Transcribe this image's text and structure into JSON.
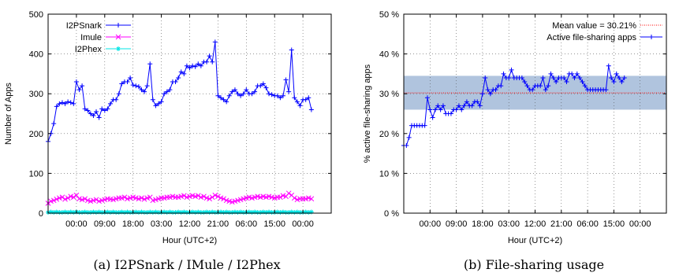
{
  "colors": {
    "blue": "#0000ff",
    "magenta": "#ff00ff",
    "cyan": "#00e5e5",
    "red": "#ff0000",
    "band": "#b0c4de"
  },
  "captions": [
    "(a) I2PSnark / IMule / I2Phex",
    "(b) File-sharing usage"
  ],
  "chart_data": [
    {
      "type": "line",
      "ylabel": "Number of Apps",
      "xlabel": "Hour (UTC+2)",
      "ylim": [
        0,
        500
      ],
      "xlim": [
        0,
        100
      ],
      "yticks": [
        0,
        100,
        200,
        300,
        400,
        500
      ],
      "xtick_labels": [
        "00:00",
        "09:00",
        "18:00",
        "03:00",
        "12:00",
        "21:00",
        "06:00",
        "15:00",
        "00:00"
      ],
      "xtick_positions": [
        10,
        20,
        30,
        40,
        50,
        60,
        70,
        80,
        90
      ],
      "grid": true,
      "legend_position": "top-left",
      "series": [
        {
          "name": "I2PSnark",
          "color": "blue",
          "marker": "plus",
          "x_step": 1,
          "x_start": 0,
          "values": [
            180,
            200,
            225,
            268,
            275,
            278,
            275,
            280,
            278,
            275,
            330,
            310,
            320,
            262,
            258,
            250,
            245,
            255,
            240,
            262,
            258,
            262,
            275,
            285,
            285,
            300,
            325,
            330,
            330,
            340,
            322,
            320,
            318,
            310,
            305,
            320,
            375,
            285,
            270,
            275,
            280,
            300,
            305,
            310,
            330,
            330,
            340,
            355,
            350,
            370,
            365,
            370,
            368,
            375,
            370,
            380,
            380,
            395,
            380,
            430,
            295,
            290,
            285,
            280,
            295,
            305,
            310,
            300,
            295,
            300,
            310,
            300,
            300,
            305,
            320,
            320,
            325,
            315,
            300,
            298,
            295,
            295,
            290,
            295,
            335,
            305,
            410,
            290,
            280,
            270,
            285,
            285,
            290,
            260
          ]
        },
        {
          "name": "Imule",
          "color": "magenta",
          "marker": "x",
          "x_step": 1,
          "x_start": 0,
          "values": [
            25,
            30,
            32,
            35,
            38,
            40,
            35,
            38,
            42,
            40,
            45,
            36,
            34,
            36,
            32,
            30,
            32,
            34,
            30,
            32,
            34,
            36,
            35,
            34,
            36,
            38,
            38,
            40,
            36,
            38,
            40,
            38,
            36,
            38,
            35,
            38,
            40,
            32,
            34,
            36,
            38,
            38,
            40,
            40,
            42,
            40,
            40,
            42,
            44,
            40,
            42,
            44,
            42,
            44,
            40,
            42,
            38,
            36,
            40,
            45,
            42,
            38,
            36,
            32,
            30,
            28,
            30,
            32,
            34,
            36,
            38,
            40,
            38,
            40,
            42,
            40,
            42,
            40,
            42,
            40,
            38,
            40,
            40,
            44,
            42,
            50,
            45,
            38,
            34,
            36,
            36,
            36,
            38,
            36
          ]
        },
        {
          "name": "I2Phex",
          "color": "cyan",
          "marker": "star",
          "x_step": 1,
          "x_start": 0,
          "values": [
            2,
            3,
            2,
            3,
            2,
            2,
            3,
            2,
            3,
            2,
            3,
            2,
            2,
            3,
            2,
            2,
            3,
            2,
            3,
            2,
            2,
            3,
            2,
            3,
            2,
            2,
            3,
            2,
            3,
            2,
            2,
            3,
            2,
            3,
            2,
            2,
            3,
            2,
            3,
            2,
            2,
            3,
            2,
            3,
            2,
            2,
            3,
            2,
            3,
            2,
            2,
            3,
            2,
            3,
            2,
            2,
            3,
            2,
            3,
            2,
            2,
            3,
            2,
            3,
            2,
            2,
            3,
            2,
            3,
            2,
            2,
            3,
            2,
            3,
            2,
            2,
            3,
            2,
            3,
            2,
            2,
            3,
            2,
            3,
            2,
            2,
            3,
            2,
            3,
            2,
            2,
            3,
            2,
            3
          ]
        }
      ]
    },
    {
      "type": "line",
      "ylabel": "% active file-sharing apps",
      "xlabel": "Hour (UTC+2)",
      "ylim": [
        0,
        50
      ],
      "xlim": [
        0,
        100
      ],
      "yticks": [
        0,
        10,
        20,
        30,
        40,
        50
      ],
      "ytick_labels": [
        "0 %",
        "10 %",
        "20 %",
        "30 %",
        "40 %",
        "50 %"
      ],
      "xtick_labels": [
        "00:00",
        "09:00",
        "18:00",
        "03:00",
        "12:00",
        "21:00",
        "06:00",
        "15:00",
        "00:00"
      ],
      "xtick_positions": [
        10,
        20,
        30,
        40,
        50,
        60,
        70,
        80,
        90
      ],
      "grid": true,
      "legend_position": "top-right",
      "mean": {
        "label": "Mean value = 30.21%",
        "value": 30.21,
        "band": [
          26,
          34.5
        ],
        "color": "red"
      },
      "series": [
        {
          "name": "Active file-sharing apps",
          "color": "blue",
          "marker": "plus",
          "x_step": 1,
          "x_start": 0,
          "values": [
            17,
            17,
            19,
            22,
            22,
            22,
            22,
            22,
            22,
            29,
            26,
            24,
            26,
            27,
            26,
            27,
            25,
            25,
            25,
            26,
            26,
            27,
            26,
            27,
            28,
            27,
            27,
            28,
            28,
            27,
            30,
            34,
            31,
            30,
            31,
            31,
            32,
            32,
            35,
            34,
            34,
            36,
            34,
            34,
            34,
            34,
            33,
            32,
            31,
            31,
            32,
            32,
            32,
            34,
            31,
            32,
            35,
            34,
            33,
            34,
            34,
            34,
            33,
            35,
            35,
            34,
            35,
            34,
            33,
            32,
            31,
            31,
            31,
            31,
            31,
            31,
            31,
            31,
            37,
            34,
            33,
            35,
            34,
            33,
            34
          ]
        }
      ]
    }
  ]
}
